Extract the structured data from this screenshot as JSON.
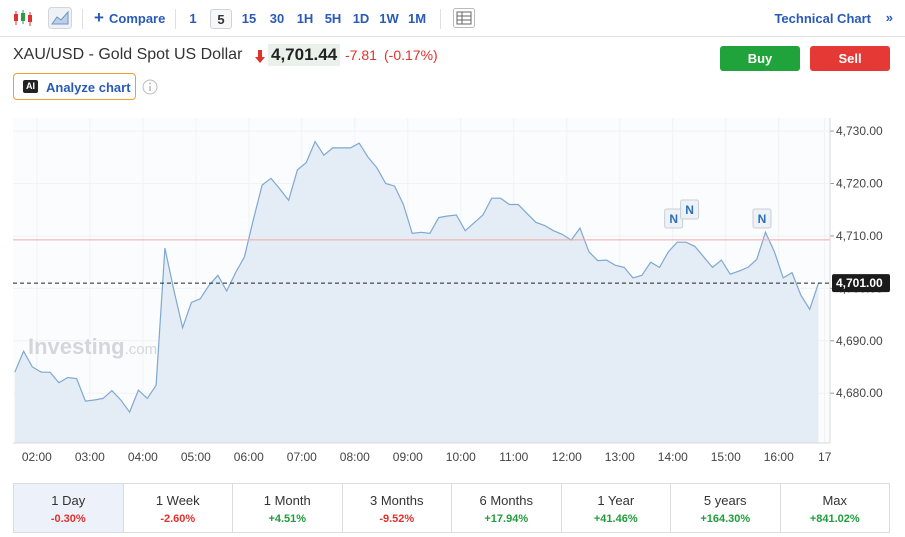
{
  "toolbar": {
    "compare": "Compare",
    "intervals": [
      {
        "label": "1"
      },
      {
        "label": "5",
        "active": true
      },
      {
        "label": "15"
      },
      {
        "label": "30"
      },
      {
        "label": "1H"
      },
      {
        "label": "5H"
      },
      {
        "label": "1D"
      },
      {
        "label": "1W"
      },
      {
        "label": "1M"
      }
    ],
    "technical_chart": "Technical Chart",
    "more": "»"
  },
  "header": {
    "title": "XAU/USD - Gold Spot US Dollar",
    "price": "4,701.44",
    "change": "-7.81",
    "change_percent": "(-0.17%)",
    "buy": "Buy",
    "sell": "Sell",
    "ai_badge": "AI",
    "analyze": "Analyze chart"
  },
  "chart_data": {
    "type": "area",
    "x": [
      95,
      105,
      115,
      125,
      135,
      145,
      155,
      165,
      175,
      185,
      195,
      205,
      215,
      225,
      235,
      245,
      255,
      265,
      275,
      285,
      295,
      305,
      315,
      325,
      335,
      345,
      355,
      365,
      375,
      385,
      395,
      405,
      415,
      425,
      435,
      445,
      455,
      465,
      475,
      485,
      495,
      505,
      515,
      525,
      535,
      545,
      555,
      565,
      575,
      585,
      595,
      605,
      615,
      625,
      635,
      645,
      655,
      665,
      675,
      685,
      695,
      705,
      715,
      725,
      735,
      745,
      755,
      765,
      775,
      785,
      795,
      805,
      815,
      825,
      835,
      845,
      855,
      865,
      875,
      885,
      895,
      905,
      915,
      925,
      935,
      945,
      955,
      965,
      975,
      985,
      995,
      1005
    ],
    "values": [
      4684,
      4688,
      4685,
      4684,
      4684,
      4682,
      4683,
      4682.8,
      4678.5,
      4678.7,
      4679,
      4680.5,
      4678.7,
      4676.4,
      4680.6,
      4679,
      4681.5,
      4707.7,
      4699.7,
      4692.5,
      4697.3,
      4698,
      4700.6,
      4702.5,
      4699.5,
      4703,
      4706,
      4713,
      4719.7,
      4721,
      4719,
      4716.8,
      4722.6,
      4724,
      4728,
      4725.4,
      4726.8,
      4726.8,
      4726.8,
      4727.7,
      4725,
      4723,
      4720,
      4719.5,
      4716,
      4710.5,
      4710.7,
      4710.5,
      4713.5,
      4713.8,
      4714,
      4711,
      4712.5,
      4714,
      4717.2,
      4717.2,
      4716,
      4716,
      4714.3,
      4712.6,
      4712,
      4711,
      4710.3,
      4709.2,
      4711.5,
      4707,
      4705.3,
      4705.4,
      4704.4,
      4704,
      4702,
      4702.5,
      4705,
      4704,
      4707,
      4708.8,
      4708.8,
      4708,
      4706,
      4704,
      4705.4,
      4702.7,
      4703.3,
      4704,
      4705.5,
      4710.7,
      4707,
      4702,
      4703,
      4698.7,
      4696,
      4701
    ],
    "color": "#7fa8d3",
    "fill": "#e4ecf5",
    "xlim": [
      93,
      1018
    ],
    "xticks": [
      {
        "value": 120,
        "label": "02:00"
      },
      {
        "value": 180,
        "label": "03:00"
      },
      {
        "value": 240,
        "label": "04:00"
      },
      {
        "value": 300,
        "label": "05:00"
      },
      {
        "value": 360,
        "label": "06:00"
      },
      {
        "value": 420,
        "label": "07:00"
      },
      {
        "value": 480,
        "label": "08:00"
      },
      {
        "value": 540,
        "label": "09:00"
      },
      {
        "value": 600,
        "label": "10:00"
      },
      {
        "value": 660,
        "label": "11:00"
      },
      {
        "value": 720,
        "label": "12:00"
      },
      {
        "value": 780,
        "label": "13:00"
      },
      {
        "value": 840,
        "label": "14:00"
      },
      {
        "value": 900,
        "label": "15:00"
      },
      {
        "value": 960,
        "label": "16:00"
      },
      {
        "value": 1012,
        "label": "17"
      }
    ],
    "ylim": [
      4670.5,
      4732.5
    ],
    "yticks": [
      {
        "value": 4680,
        "label": "4,680.00"
      },
      {
        "value": 4690,
        "label": "4,690.00"
      },
      {
        "value": 4700,
        "label": "4,700.00"
      },
      {
        "value": 4710,
        "label": "4,710.00"
      },
      {
        "value": 4720,
        "label": "4,720.00"
      },
      {
        "value": 4730,
        "label": "4,730.00"
      }
    ],
    "reference_line": {
      "value": 4709.25,
      "color": "#f3a9a9"
    },
    "last_price": {
      "value": 4701,
      "label": "4,701.00"
    },
    "news_markers": [
      {
        "label": "N",
        "x": 841
      },
      {
        "label": "N",
        "x": 859
      },
      {
        "label": "N",
        "x": 941
      }
    ],
    "watermark": {
      "brand": "Investing",
      "suffix": ".com"
    }
  },
  "performance": [
    {
      "period": "1 Day",
      "change": "-0.30%",
      "active": true
    },
    {
      "period": "1 Week",
      "change": "-2.60%"
    },
    {
      "period": "1 Month",
      "change": "+4.51%"
    },
    {
      "period": "3 Months",
      "change": "-9.52%"
    },
    {
      "period": "6 Months",
      "change": "+17.94%"
    },
    {
      "period": "1 Year",
      "change": "+41.46%"
    },
    {
      "period": "5 years",
      "change": "+164.30%"
    },
    {
      "period": "Max",
      "change": "+841.02%"
    }
  ]
}
